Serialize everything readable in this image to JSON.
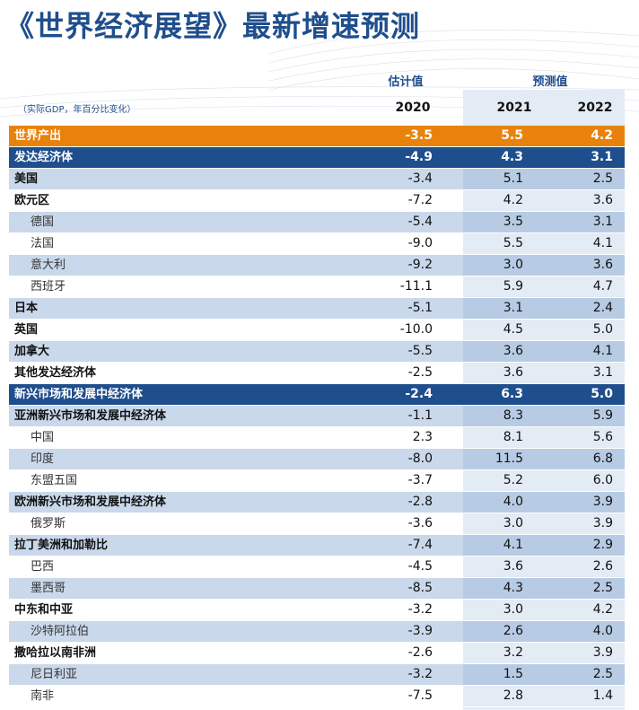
{
  "title": "《世界经济展望》最新增速预测",
  "header": {
    "estimate_label": "估计值",
    "projection_label": "预测值",
    "note": "（实际GDP，年百分比变化）",
    "years": [
      "2020",
      "2021",
      "2022"
    ]
  },
  "rows": [
    {
      "name": "世界产出",
      "v2020": "-3.5",
      "v2021": "5.5",
      "v2022": "4.2",
      "kind": "world"
    },
    {
      "name": "发达经济体",
      "v2020": "-4.9",
      "v2021": "4.3",
      "v2022": "3.1",
      "kind": "group"
    },
    {
      "name": "美国",
      "v2020": "-3.4",
      "v2021": "5.1",
      "v2022": "2.5",
      "kind": "main"
    },
    {
      "name": "欧元区",
      "v2020": "-7.2",
      "v2021": "4.2",
      "v2022": "3.6",
      "kind": "main"
    },
    {
      "name": "德国",
      "v2020": "-5.4",
      "v2021": "3.5",
      "v2022": "3.1",
      "kind": "sub"
    },
    {
      "name": "法国",
      "v2020": "-9.0",
      "v2021": "5.5",
      "v2022": "4.1",
      "kind": "sub"
    },
    {
      "name": "意大利",
      "v2020": "-9.2",
      "v2021": "3.0",
      "v2022": "3.6",
      "kind": "sub"
    },
    {
      "name": "西班牙",
      "v2020": "-11.1",
      "v2021": "5.9",
      "v2022": "4.7",
      "kind": "sub"
    },
    {
      "name": "日本",
      "v2020": "-5.1",
      "v2021": "3.1",
      "v2022": "2.4",
      "kind": "main"
    },
    {
      "name": "英国",
      "v2020": "-10.0",
      "v2021": "4.5",
      "v2022": "5.0",
      "kind": "main"
    },
    {
      "name": "加拿大",
      "v2020": "-5.5",
      "v2021": "3.6",
      "v2022": "4.1",
      "kind": "main"
    },
    {
      "name": "其他发达经济体",
      "v2020": "-2.5",
      "v2021": "3.6",
      "v2022": "3.1",
      "kind": "main"
    },
    {
      "name": "新兴市场和发展中经济体",
      "v2020": "-2.4",
      "v2021": "6.3",
      "v2022": "5.0",
      "kind": "group"
    },
    {
      "name": "亚洲新兴市场和发展中经济体",
      "v2020": "-1.1",
      "v2021": "8.3",
      "v2022": "5.9",
      "kind": "main"
    },
    {
      "name": "中国",
      "v2020": "2.3",
      "v2021": "8.1",
      "v2022": "5.6",
      "kind": "sub"
    },
    {
      "name": "印度",
      "v2020": "-8.0",
      "v2021": "11.5",
      "v2022": "6.8",
      "kind": "sub"
    },
    {
      "name": "东盟五国",
      "v2020": "-3.7",
      "v2021": "5.2",
      "v2022": "6.0",
      "kind": "sub"
    },
    {
      "name": "欧洲新兴市场和发展中经济体",
      "v2020": "-2.8",
      "v2021": "4.0",
      "v2022": "3.9",
      "kind": "main"
    },
    {
      "name": "俄罗斯",
      "v2020": "-3.6",
      "v2021": "3.0",
      "v2022": "3.9",
      "kind": "sub"
    },
    {
      "name": "拉丁美洲和加勒比",
      "v2020": "-7.4",
      "v2021": "4.1",
      "v2022": "2.9",
      "kind": "main"
    },
    {
      "name": "巴西",
      "v2020": "-4.5",
      "v2021": "3.6",
      "v2022": "2.6",
      "kind": "sub"
    },
    {
      "name": "墨西哥",
      "v2020": "-8.5",
      "v2021": "4.3",
      "v2022": "2.5",
      "kind": "sub"
    },
    {
      "name": "中东和中亚",
      "v2020": "-3.2",
      "v2021": "3.0",
      "v2022": "4.2",
      "kind": "main"
    },
    {
      "name": "沙特阿拉伯",
      "v2020": "-3.9",
      "v2021": "2.6",
      "v2022": "4.0",
      "kind": "sub"
    },
    {
      "name": "撒哈拉以南非洲",
      "v2020": "-2.6",
      "v2021": "3.2",
      "v2022": "3.9",
      "kind": "main"
    },
    {
      "name": "尼日利亚",
      "v2020": "-3.2",
      "v2021": "1.5",
      "v2022": "2.5",
      "kind": "sub"
    },
    {
      "name": "南非",
      "v2020": "-7.5",
      "v2021": "2.8",
      "v2022": "1.4",
      "kind": "sub"
    }
  ],
  "colors": {
    "title": "#1f4e8c",
    "world": "#e8820c",
    "group": "#1f4e8c",
    "shade": "#c9d8eb",
    "projection": "#e3ebf5"
  }
}
